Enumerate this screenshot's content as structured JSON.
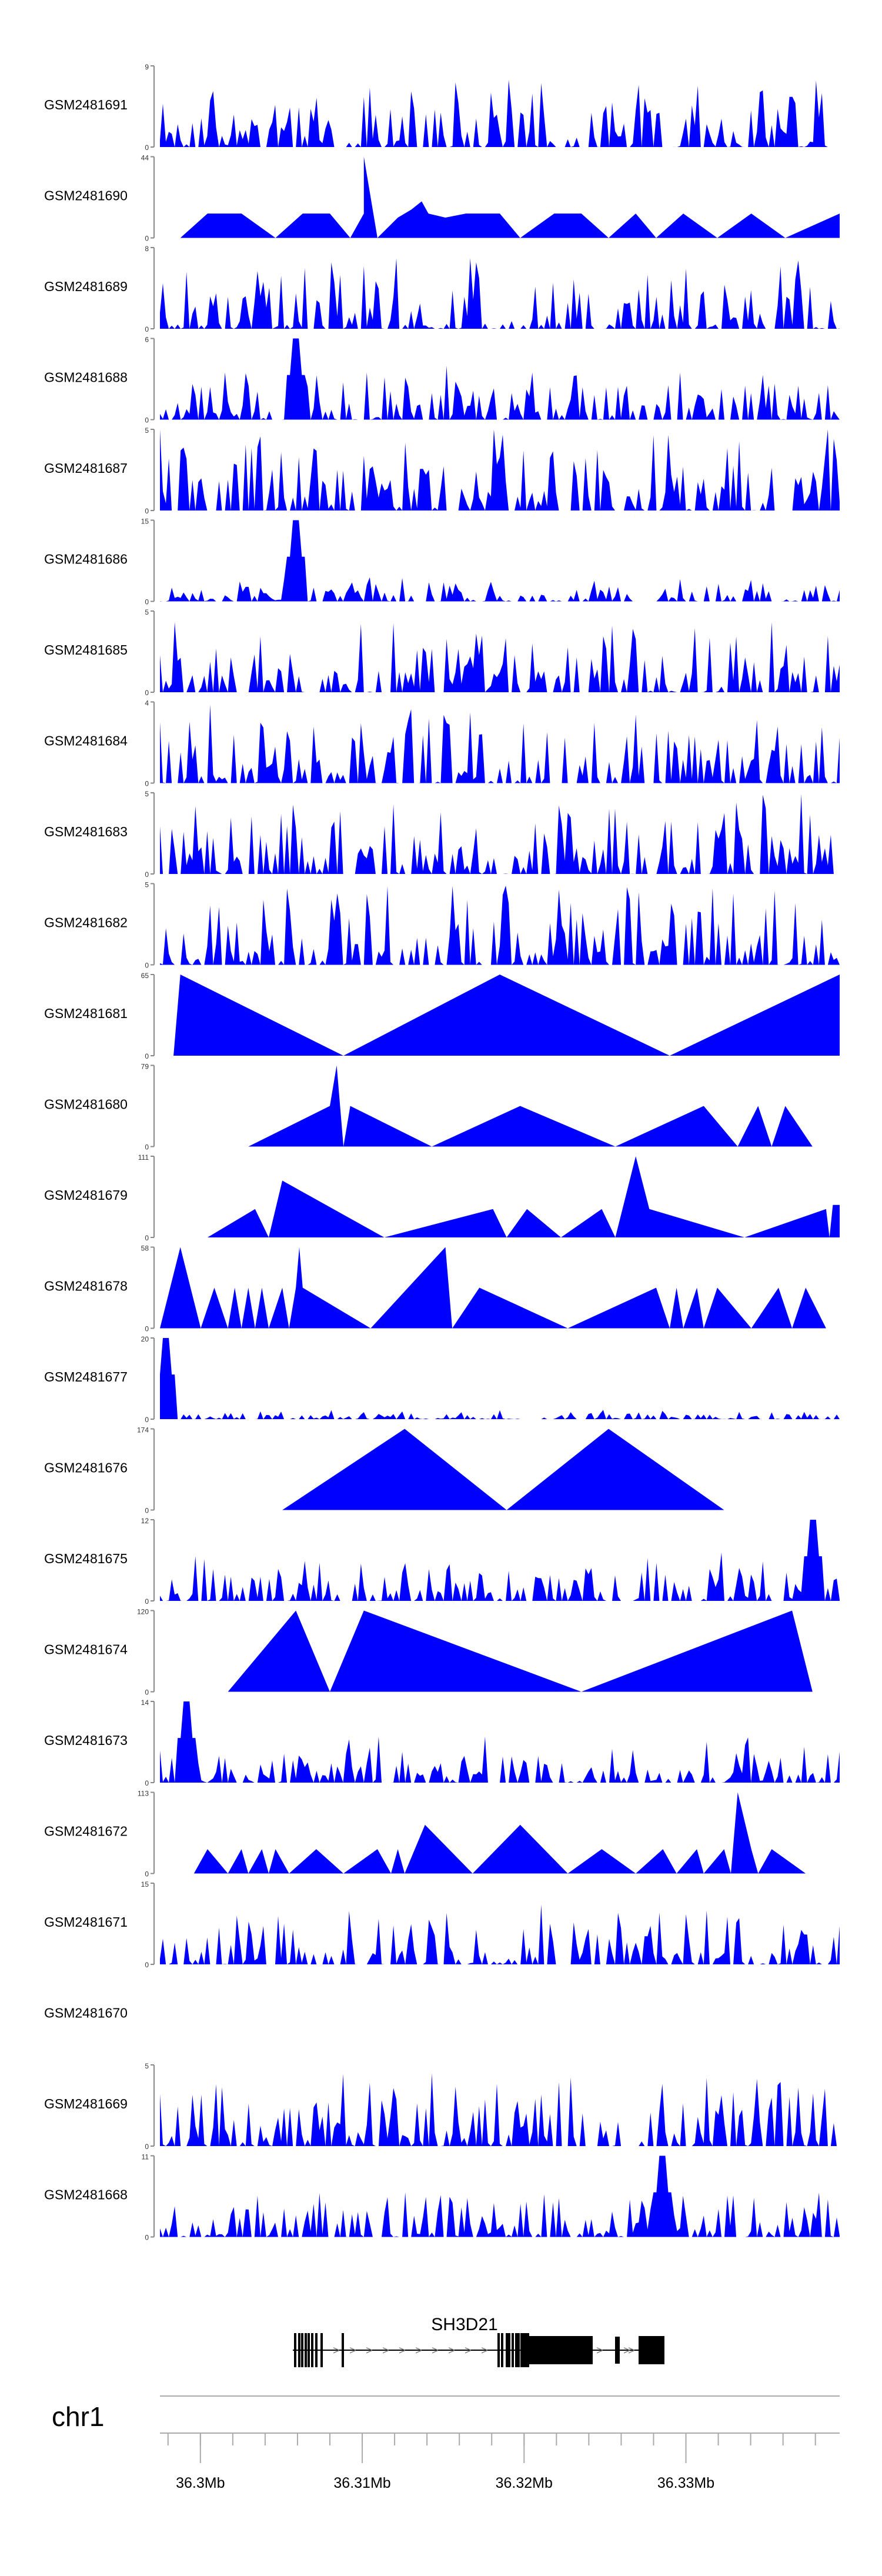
{
  "chart_data": {
    "type": "area",
    "description_hidden": false,
    "fill_color": "#0000ff",
    "axis_color": "#888888",
    "text_color": "#000000",
    "tracks": [
      {
        "name": "GSM2481691",
        "ymax": "9",
        "ymin": "0",
        "profile": "dense",
        "seed": 11,
        "scale": 0.55
      },
      {
        "name": "GSM2481690",
        "ymax": "44",
        "ymin": "0",
        "profile": "sparse",
        "peaks": [
          [
            0.03,
            0.0
          ],
          [
            0.07,
            0.3
          ],
          [
            0.12,
            0.3
          ],
          [
            0.17,
            0.0
          ],
          [
            0.21,
            0.3
          ],
          [
            0.25,
            0.3
          ],
          [
            0.28,
            0.0
          ],
          [
            0.3,
            0.3
          ],
          [
            0.32,
            0.0
          ],
          [
            0.35,
            0.25
          ],
          [
            0.37,
            0.35
          ],
          [
            0.385,
            0.45
          ],
          [
            0.3,
            1.0
          ],
          [
            0.395,
            0.3
          ],
          [
            0.42,
            0.25
          ],
          [
            0.45,
            0.3
          ],
          [
            0.5,
            0.3
          ],
          [
            0.53,
            0.0
          ],
          [
            0.58,
            0.3
          ],
          [
            0.62,
            0.3
          ],
          [
            0.66,
            0.0
          ],
          [
            0.7,
            0.3
          ],
          [
            0.73,
            0.0
          ],
          [
            0.77,
            0.3
          ],
          [
            0.82,
            0.0
          ],
          [
            0.87,
            0.3
          ],
          [
            0.92,
            0.0
          ],
          [
            1.0,
            0.3
          ]
        ]
      },
      {
        "name": "GSM2481689",
        "ymax": "8",
        "ymin": "0",
        "profile": "dense",
        "seed": 23,
        "scale": 0.6
      },
      {
        "name": "GSM2481688",
        "ymax": "6",
        "ymin": "0",
        "profile": "dense",
        "seed": 37,
        "scale": 0.45,
        "spike": [
          0.2,
          1.0
        ]
      },
      {
        "name": "GSM2481687",
        "ymax": "5",
        "ymin": "0",
        "profile": "dense",
        "seed": 41,
        "scale": 0.75
      },
      {
        "name": "GSM2481686",
        "ymax": "15",
        "ymin": "0",
        "profile": "dense",
        "seed": 53,
        "scale": 0.2,
        "spike": [
          0.2,
          1.0
        ]
      },
      {
        "name": "GSM2481685",
        "ymax": "5",
        "ymin": "0",
        "profile": "dense",
        "seed": 61,
        "scale": 0.6
      },
      {
        "name": "GSM2481684",
        "ymax": "4",
        "ymin": "0",
        "profile": "dense",
        "seed": 73,
        "scale": 0.65
      },
      {
        "name": "GSM2481683",
        "ymax": "5",
        "ymin": "0",
        "profile": "dense",
        "seed": 83,
        "scale": 0.7
      },
      {
        "name": "GSM2481682",
        "ymax": "5",
        "ymin": "0",
        "profile": "dense",
        "seed": 97,
        "scale": 0.65
      },
      {
        "name": "GSM2481681",
        "ymax": "65",
        "ymin": "0",
        "profile": "sparse",
        "peaks": [
          [
            0.02,
            0.0
          ],
          [
            0.03,
            1.0
          ],
          [
            0.27,
            0.0
          ],
          [
            0.5,
            1.0
          ],
          [
            0.75,
            0.0
          ],
          [
            1.0,
            1.0
          ]
        ]
      },
      {
        "name": "GSM2481680",
        "ymax": "79",
        "ymin": "0",
        "profile": "sparse",
        "peaks": [
          [
            0.13,
            0.0
          ],
          [
            0.25,
            0.5
          ],
          [
            0.26,
            1.0
          ],
          [
            0.27,
            0.0
          ],
          [
            0.28,
            0.5
          ],
          [
            0.4,
            0.0
          ],
          [
            0.53,
            0.5
          ],
          [
            0.67,
            0.0
          ],
          [
            0.8,
            0.5
          ],
          [
            0.85,
            0.0
          ],
          [
            0.88,
            0.5
          ],
          [
            0.9,
            0.0
          ],
          [
            0.92,
            0.5
          ],
          [
            0.96,
            0.0
          ]
        ]
      },
      {
        "name": "GSM2481679",
        "ymax": "111",
        "ymin": "0",
        "profile": "sparse",
        "peaks": [
          [
            0.07,
            0.0
          ],
          [
            0.14,
            0.35
          ],
          [
            0.16,
            0.0
          ],
          [
            0.18,
            0.7
          ],
          [
            0.33,
            0.0
          ],
          [
            0.49,
            0.35
          ],
          [
            0.51,
            0.0
          ],
          [
            0.54,
            0.35
          ],
          [
            0.59,
            0.0
          ],
          [
            0.65,
            0.35
          ],
          [
            0.67,
            0.0
          ],
          [
            0.7,
            1.0
          ],
          [
            0.72,
            0.35
          ],
          [
            0.86,
            0.0
          ],
          [
            0.98,
            0.35
          ],
          [
            0.985,
            0.0
          ],
          [
            0.99,
            0.4
          ],
          [
            1.0,
            0.4
          ]
        ]
      },
      {
        "name": "GSM2481678",
        "ymax": "58",
        "ymin": "0",
        "profile": "sparse",
        "peaks": [
          [
            0.0,
            0.0
          ],
          [
            0.03,
            1.0
          ],
          [
            0.06,
            0.0
          ],
          [
            0.08,
            0.5
          ],
          [
            0.1,
            0.0
          ],
          [
            0.11,
            0.5
          ],
          [
            0.12,
            0.0
          ],
          [
            0.13,
            0.5
          ],
          [
            0.14,
            0.0
          ],
          [
            0.15,
            0.5
          ],
          [
            0.16,
            0.0
          ],
          [
            0.18,
            0.5
          ],
          [
            0.19,
            0.0
          ],
          [
            0.2,
            0.5
          ],
          [
            0.205,
            1.0
          ],
          [
            0.21,
            0.5
          ],
          [
            0.31,
            0.0
          ],
          [
            0.42,
            1.0
          ],
          [
            0.43,
            0.0
          ],
          [
            0.47,
            0.5
          ],
          [
            0.6,
            0.0
          ],
          [
            0.73,
            0.5
          ],
          [
            0.75,
            0.0
          ],
          [
            0.76,
            0.5
          ],
          [
            0.77,
            0.0
          ],
          [
            0.79,
            0.5
          ],
          [
            0.8,
            0.0
          ],
          [
            0.82,
            0.5
          ],
          [
            0.87,
            0.0
          ],
          [
            0.91,
            0.5
          ],
          [
            0.93,
            0.0
          ],
          [
            0.95,
            0.5
          ],
          [
            0.98,
            0.0
          ]
        ]
      },
      {
        "name": "GSM2481677",
        "ymax": "20",
        "ymin": "0",
        "profile": "dense",
        "seed": 101,
        "scale": 0.08,
        "spike": [
          0.01,
          1.0
        ]
      },
      {
        "name": "GSM2481676",
        "ymax": "174",
        "ymin": "0",
        "profile": "sparse",
        "peaks": [
          [
            0.18,
            0.0
          ],
          [
            0.36,
            1.0
          ],
          [
            0.51,
            0.0
          ],
          [
            0.66,
            1.0
          ],
          [
            0.83,
            0.0
          ]
        ]
      },
      {
        "name": "GSM2481675",
        "ymax": "12",
        "ymin": "0",
        "profile": "dense",
        "seed": 113,
        "scale": 0.4,
        "spike": [
          0.96,
          1.0
        ]
      },
      {
        "name": "GSM2481674",
        "ymax": "120",
        "ymin": "0",
        "profile": "sparse",
        "peaks": [
          [
            0.1,
            0.0
          ],
          [
            0.2,
            1.0
          ],
          [
            0.25,
            0.0
          ],
          [
            0.3,
            1.0
          ],
          [
            0.62,
            0.0
          ],
          [
            0.93,
            1.0
          ],
          [
            0.96,
            0.0
          ]
        ]
      },
      {
        "name": "GSM2481673",
        "ymax": "14",
        "ymin": "0",
        "profile": "dense",
        "seed": 127,
        "scale": 0.4,
        "spike": [
          0.04,
          1.0
        ]
      },
      {
        "name": "GSM2481672",
        "ymax": "113",
        "ymin": "0",
        "profile": "sparse",
        "peaks": [
          [
            0.05,
            0.0
          ],
          [
            0.07,
            0.3
          ],
          [
            0.1,
            0.0
          ],
          [
            0.12,
            0.3
          ],
          [
            0.13,
            0.0
          ],
          [
            0.15,
            0.3
          ],
          [
            0.16,
            0.0
          ],
          [
            0.17,
            0.3
          ],
          [
            0.19,
            0.0
          ],
          [
            0.23,
            0.3
          ],
          [
            0.27,
            0.0
          ],
          [
            0.32,
            0.3
          ],
          [
            0.34,
            0.0
          ],
          [
            0.35,
            0.3
          ],
          [
            0.36,
            0.0
          ],
          [
            0.39,
            0.6
          ],
          [
            0.46,
            0.0
          ],
          [
            0.53,
            0.6
          ],
          [
            0.6,
            0.0
          ],
          [
            0.65,
            0.3
          ],
          [
            0.7,
            0.0
          ],
          [
            0.74,
            0.3
          ],
          [
            0.76,
            0.0
          ],
          [
            0.79,
            0.3
          ],
          [
            0.8,
            0.0
          ],
          [
            0.83,
            0.3
          ],
          [
            0.84,
            0.0
          ],
          [
            0.85,
            1.0
          ],
          [
            0.87,
            0.3
          ],
          [
            0.88,
            0.0
          ],
          [
            0.9,
            0.3
          ],
          [
            0.95,
            0.0
          ]
        ]
      },
      {
        "name": "GSM2481671",
        "ymax": "15",
        "ymin": "0",
        "profile": "dense",
        "seed": 131,
        "scale": 0.5
      },
      {
        "name": "GSM2481670",
        "ymax": "",
        "ymin": "",
        "profile": "empty"
      },
      {
        "name": "GSM2481669",
        "ymax": "5",
        "ymin": "0",
        "profile": "dense",
        "seed": 149,
        "scale": 0.6
      },
      {
        "name": "GSM2481668",
        "ymax": "11",
        "ymin": "0",
        "profile": "dense",
        "seed": 157,
        "scale": 0.4,
        "spike": [
          0.74,
          1.0
        ]
      }
    ],
    "gene": {
      "label": "SH3D21",
      "strand_arrow": ">"
    },
    "chromosome": "chr1",
    "axis": {
      "xmin_mb": 36.2975,
      "xmax_mb": 36.3395,
      "major_ticks": [
        {
          "value": 36.3,
          "label": "36.3Mb"
        },
        {
          "value": 36.31,
          "label": "36.31Mb"
        },
        {
          "value": 36.32,
          "label": "36.32Mb"
        },
        {
          "value": 36.33,
          "label": "36.33Mb"
        }
      ],
      "minor_step": 0.002
    }
  }
}
